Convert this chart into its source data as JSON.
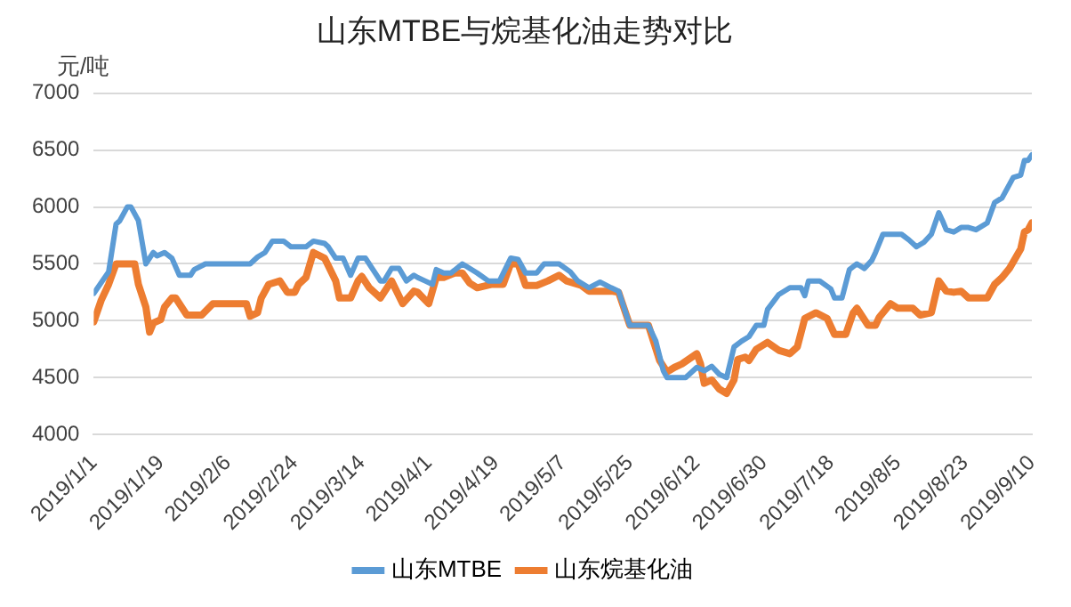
{
  "chart_data": {
    "type": "line",
    "title": "山东MTBE与烷基化油走势对比",
    "ylabel": "元/吨",
    "xlim": [
      "2019-01-01",
      "2019-09-10"
    ],
    "xticks": [
      {
        "value": "2019-01-01",
        "label": "2019/1/1"
      },
      {
        "value": "2019-01-19",
        "label": "2019/1/19"
      },
      {
        "value": "2019-02-06",
        "label": "2019/2/6"
      },
      {
        "value": "2019-02-24",
        "label": "2019/2/24"
      },
      {
        "value": "2019-03-14",
        "label": "2019/3/14"
      },
      {
        "value": "2019-04-01",
        "label": "2019/4/1"
      },
      {
        "value": "2019-04-19",
        "label": "2019/4/19"
      },
      {
        "value": "2019-05-07",
        "label": "2019/5/7"
      },
      {
        "value": "2019-05-25",
        "label": "2019/5/25"
      },
      {
        "value": "2019-06-12",
        "label": "2019/6/12"
      },
      {
        "value": "2019-06-30",
        "label": "2019/6/30"
      },
      {
        "value": "2019-07-18",
        "label": "2019/7/18"
      },
      {
        "value": "2019-08-05",
        "label": "2019/8/5"
      },
      {
        "value": "2019-08-23",
        "label": "2019/8/23"
      },
      {
        "value": "2019-09-10",
        "label": "2019/9/10"
      }
    ],
    "ylim": [
      4000,
      7000
    ],
    "yticks": [
      4000,
      4500,
      5000,
      5500,
      6000,
      6500,
      7000
    ],
    "grid": "y",
    "legend": "bottom",
    "marker": "none",
    "line_style": "solid",
    "series": [
      {
        "name": "山东MTBE",
        "color": "#5b9bd5",
        "x": [
          "2019-01-01",
          "2019-01-05",
          "2019-01-07",
          "2019-01-08",
          "2019-01-10",
          "2019-01-11",
          "2019-01-13",
          "2019-01-15",
          "2019-01-17",
          "2019-01-18",
          "2019-01-20",
          "2019-01-22",
          "2019-01-24",
          "2019-01-27",
          "2019-01-28",
          "2019-01-31",
          "2019-02-12",
          "2019-02-14",
          "2019-02-16",
          "2019-02-18",
          "2019-02-21",
          "2019-02-23",
          "2019-02-27",
          "2019-03-01",
          "2019-03-04",
          "2019-03-05",
          "2019-03-07",
          "2019-03-09",
          "2019-03-11",
          "2019-03-13",
          "2019-03-15",
          "2019-03-17",
          "2019-03-19",
          "2019-03-20",
          "2019-03-22",
          "2019-03-24",
          "2019-03-26",
          "2019-03-28",
          "2019-03-29",
          "2019-03-31",
          "2019-04-02",
          "2019-04-03",
          "2019-04-05",
          "2019-04-07",
          "2019-04-10",
          "2019-04-11",
          "2019-04-14",
          "2019-04-17",
          "2019-04-20",
          "2019-04-23",
          "2019-04-25",
          "2019-04-27",
          "2019-04-30",
          "2019-05-02",
          "2019-05-06",
          "2019-05-09",
          "2019-05-11",
          "2019-05-14",
          "2019-05-17",
          "2019-05-20",
          "2019-05-22",
          "2019-05-25",
          "2019-05-30",
          "2019-06-01",
          "2019-06-03",
          "2019-06-04",
          "2019-06-09",
          "2019-06-12",
          "2019-06-14",
          "2019-06-16",
          "2019-06-18",
          "2019-06-20",
          "2019-06-22",
          "2019-06-24",
          "2019-06-26",
          "2019-06-28",
          "2019-06-30",
          "2019-07-01",
          "2019-07-04",
          "2019-07-07",
          "2019-07-10",
          "2019-07-11",
          "2019-07-12",
          "2019-07-15",
          "2019-07-18",
          "2019-07-19",
          "2019-07-21",
          "2019-07-23",
          "2019-07-25",
          "2019-07-27",
          "2019-07-29",
          "2019-07-30",
          "2019-08-01",
          "2019-08-06",
          "2019-08-08",
          "2019-08-10",
          "2019-08-12",
          "2019-08-14",
          "2019-08-16",
          "2019-08-17",
          "2019-08-18",
          "2019-08-20",
          "2019-08-22",
          "2019-08-24",
          "2019-08-26",
          "2019-08-29",
          "2019-08-31",
          "2019-09-02",
          "2019-09-05",
          "2019-09-07",
          "2019-09-08",
          "2019-09-09",
          "2019-09-10"
        ],
        "values": [
          5240,
          5430,
          5850,
          5880,
          6000,
          6000,
          5880,
          5500,
          5600,
          5570,
          5600,
          5550,
          5400,
          5400,
          5450,
          5500,
          5500,
          5560,
          5600,
          5700,
          5700,
          5650,
          5650,
          5700,
          5680,
          5650,
          5550,
          5550,
          5400,
          5550,
          5550,
          5450,
          5350,
          5350,
          5460,
          5460,
          5350,
          5400,
          5380,
          5350,
          5320,
          5450,
          5420,
          5420,
          5500,
          5480,
          5420,
          5350,
          5350,
          5550,
          5540,
          5420,
          5420,
          5500,
          5500,
          5430,
          5350,
          5290,
          5340,
          5290,
          5260,
          4960,
          4960,
          4820,
          4560,
          4500,
          4500,
          4590,
          4560,
          4600,
          4530,
          4500,
          4770,
          4820,
          4860,
          4960,
          4960,
          5100,
          5230,
          5290,
          5290,
          5220,
          5350,
          5350,
          5280,
          5200,
          5200,
          5450,
          5500,
          5460,
          5530,
          5600,
          5760,
          5760,
          5710,
          5650,
          5690,
          5760,
          5950,
          5880,
          5800,
          5780,
          5820,
          5820,
          5800,
          5860,
          6040,
          6080,
          6260,
          6280,
          6410,
          6410,
          6460
        ]
      },
      {
        "name": "山东烷基化油",
        "color": "#ed7d31",
        "x": [
          "2019-01-01",
          "2019-01-03",
          "2019-01-05",
          "2019-01-07",
          "2019-01-12",
          "2019-01-13",
          "2019-01-15",
          "2019-01-16",
          "2019-01-17",
          "2019-01-19",
          "2019-01-20",
          "2019-01-22",
          "2019-01-23",
          "2019-01-26",
          "2019-01-30",
          "2019-02-02",
          "2019-02-11",
          "2019-02-12",
          "2019-02-14",
          "2019-02-15",
          "2019-02-17",
          "2019-02-20",
          "2019-02-22",
          "2019-02-24",
          "2019-02-25",
          "2019-02-27",
          "2019-03-01",
          "2019-03-04",
          "2019-03-07",
          "2019-03-08",
          "2019-03-11",
          "2019-03-13",
          "2019-03-14",
          "2019-03-16",
          "2019-03-19",
          "2019-03-22",
          "2019-03-25",
          "2019-03-28",
          "2019-03-29",
          "2019-04-01",
          "2019-04-03",
          "2019-04-05",
          "2019-04-08",
          "2019-04-10",
          "2019-04-12",
          "2019-04-14",
          "2019-04-18",
          "2019-04-21",
          "2019-04-23",
          "2019-04-25",
          "2019-04-27",
          "2019-04-30",
          "2019-05-03",
          "2019-05-06",
          "2019-05-08",
          "2019-05-12",
          "2019-05-14",
          "2019-05-20",
          "2019-05-22",
          "2019-05-25",
          "2019-05-30",
          "2019-06-02",
          "2019-06-04",
          "2019-06-06",
          "2019-06-08",
          "2019-06-12",
          "2019-06-13",
          "2019-06-14",
          "2019-06-16",
          "2019-06-18",
          "2019-06-20",
          "2019-06-22",
          "2019-06-23",
          "2019-06-25",
          "2019-06-26",
          "2019-06-28",
          "2019-07-01",
          "2019-07-04",
          "2019-07-07",
          "2019-07-09",
          "2019-07-11",
          "2019-07-14",
          "2019-07-17",
          "2019-07-19",
          "2019-07-22",
          "2019-07-24",
          "2019-07-25",
          "2019-07-28",
          "2019-07-30",
          "2019-07-31",
          "2019-08-03",
          "2019-08-05",
          "2019-08-09",
          "2019-08-11",
          "2019-08-14",
          "2019-08-16",
          "2019-08-18",
          "2019-08-20",
          "2019-08-22",
          "2019-08-24",
          "2019-08-29",
          "2019-08-31",
          "2019-09-02",
          "2019-09-04",
          "2019-09-07",
          "2019-09-08",
          "2019-09-09",
          "2019-09-10"
        ],
        "values": [
          4990,
          5180,
          5320,
          5500,
          5500,
          5320,
          5120,
          4900,
          4980,
          5010,
          5120,
          5200,
          5200,
          5050,
          5050,
          5150,
          5150,
          5040,
          5070,
          5200,
          5320,
          5350,
          5250,
          5250,
          5320,
          5380,
          5600,
          5550,
          5350,
          5200,
          5200,
          5350,
          5390,
          5290,
          5200,
          5350,
          5150,
          5260,
          5250,
          5150,
          5380,
          5380,
          5420,
          5420,
          5330,
          5290,
          5320,
          5320,
          5500,
          5500,
          5310,
          5310,
          5350,
          5400,
          5350,
          5310,
          5260,
          5260,
          5250,
          4960,
          4960,
          4650,
          4550,
          4590,
          4620,
          4710,
          4620,
          4450,
          4480,
          4400,
          4360,
          4480,
          4660,
          4680,
          4650,
          4750,
          4810,
          4740,
          4710,
          4770,
          5020,
          5070,
          5020,
          4880,
          4880,
          5070,
          5110,
          4960,
          4960,
          5030,
          5150,
          5110,
          5110,
          5050,
          5070,
          5350,
          5260,
          5250,
          5260,
          5200,
          5200,
          5320,
          5380,
          5460,
          5630,
          5780,
          5800,
          5860
        ]
      }
    ]
  }
}
